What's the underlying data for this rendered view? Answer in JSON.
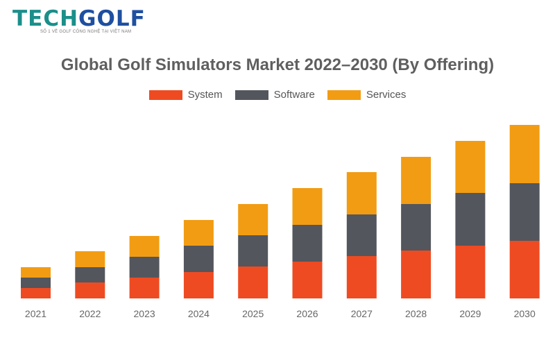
{
  "logo": {
    "text_part1": "TECH",
    "text_part2": "GOLF",
    "tagline": "SỐ 1 VỀ GOLF CÔNG NGHỆ TẠI VIỆT NAM"
  },
  "chart_data": {
    "type": "bar",
    "stacked": true,
    "title": "Global Golf Simulators Market 2022–2030 (By Offering)",
    "xlabel": "",
    "ylabel": "",
    "y_axis_shown": false,
    "grid": false,
    "legend_position": "top-center",
    "ylim": [
      0,
      260
    ],
    "categories": [
      "2021",
      "2022",
      "2023",
      "2024",
      "2025",
      "2026",
      "2027",
      "2028",
      "2029",
      "2030"
    ],
    "series": [
      {
        "name": "System",
        "color": "#ee4b22",
        "values": [
          15,
          23,
          30,
          38,
          46,
          53,
          61,
          69,
          76,
          83
        ]
      },
      {
        "name": "Software",
        "color": "#53565c",
        "values": [
          15,
          22,
          30,
          38,
          45,
          53,
          60,
          67,
          76,
          83
        ]
      },
      {
        "name": "Services",
        "color": "#f29c13",
        "values": [
          15,
          23,
          30,
          37,
          45,
          53,
          61,
          68,
          75,
          84
        ]
      }
    ]
  }
}
